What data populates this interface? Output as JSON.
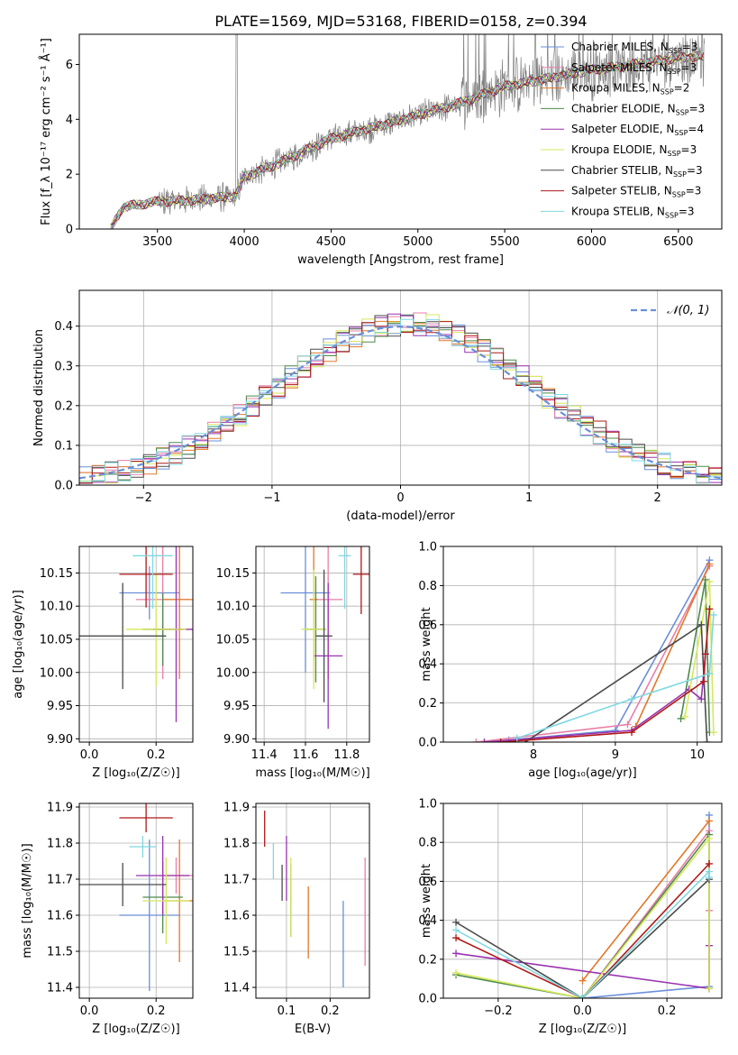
{
  "figure": {
    "title": "PLATE=1569, MJD=53168, FIBERID=0158, z=0.394"
  },
  "models": [
    {
      "name": "Chabrier MILES",
      "nssp": "3",
      "color": "#6a8fd8"
    },
    {
      "name": "Salpeter MILES",
      "nssp": "3",
      "color": "#e87fa8"
    },
    {
      "name": "Kroupa MILES",
      "nssp": "2",
      "color": "#e0782a"
    },
    {
      "name": "Chabrier ELODIE",
      "nssp": "3",
      "color": "#4c8a4c"
    },
    {
      "name": "Salpeter ELODIE",
      "nssp": "4",
      "color": "#9932b0"
    },
    {
      "name": "Kroupa ELODIE",
      "nssp": "3",
      "color": "#d6e85a"
    },
    {
      "name": "Chabrier STELIB",
      "nssp": "3",
      "color": "#4a4a4a"
    },
    {
      "name": "Salpeter STELIB",
      "nssp": "3",
      "color": "#b01818"
    },
    {
      "name": "Kroupa STELIB",
      "nssp": "3",
      "color": "#7fd8e0"
    }
  ],
  "chart_data": [
    {
      "id": "spectrum",
      "type": "line",
      "xlabel": "wavelength [Angstrom, rest frame]",
      "ylabel": "Flux [f_λ 10⁻¹⁷ erg cm⁻² s⁻¹ Å⁻¹]",
      "xlim": [
        3050,
        6750
      ],
      "ylim": [
        0,
        7.1
      ],
      "xticks": [
        3500,
        4000,
        4500,
        5000,
        5500,
        6000,
        6500
      ],
      "yticks": [
        0,
        2,
        4,
        6
      ],
      "legend_position": "top-right",
      "data_color": "#808080",
      "model_trend": {
        "x": [
          3230,
          3300,
          3500,
          3700,
          3950,
          4000,
          4200,
          4500,
          4800,
          5000,
          5250,
          5500,
          5800,
          6000,
          6200,
          6500,
          6650
        ],
        "y": [
          0.0,
          0.8,
          1.0,
          1.05,
          1.2,
          1.9,
          2.4,
          3.3,
          3.8,
          4.15,
          4.6,
          5.2,
          5.55,
          5.8,
          5.95,
          6.25,
          6.3
        ]
      }
    },
    {
      "id": "residuals",
      "type": "histogram",
      "xlabel": "(data-model)/error",
      "ylabel": "Normed distribution",
      "xlim": [
        -2.5,
        2.5
      ],
      "ylim": [
        0,
        0.49
      ],
      "xticks": [
        -2,
        -1,
        0,
        1,
        2
      ],
      "yticks": [
        0.0,
        0.1,
        0.2,
        0.3,
        0.4
      ],
      "legend_position": "top-right",
      "reference_curve": "𝒩(0, 1)",
      "bin_width": 0.1
    },
    {
      "id": "age_vs_Z",
      "type": "errorbar",
      "xlabel": "Z [log₁₀(Z/Z☉)]",
      "ylabel": "age  [log₁₀(age/yr)]",
      "xlim": [
        -0.03,
        0.31
      ],
      "ylim": [
        9.895,
        10.19
      ],
      "xticks": [
        0.0,
        0.2
      ],
      "yticks": [
        9.9,
        9.95,
        10.0,
        10.05,
        10.1,
        10.15
      ],
      "points": [
        {
          "x": 0.18,
          "xerr": 0.09,
          "y": 10.12,
          "yerr": 0.04
        },
        {
          "x": 0.22,
          "xerr": 0.08,
          "y": 10.11,
          "yerr": 0.12
        },
        {
          "x": 0.27,
          "xerr": 0.05,
          "y": 10.11,
          "yerr": 0.12
        },
        {
          "x": 0.22,
          "xerr": 0.06,
          "y": 10.065,
          "yerr": 0.055
        },
        {
          "x": 0.26,
          "xerr": 0.07,
          "y": 10.065,
          "yerr": 0.14
        },
        {
          "x": 0.2,
          "xerr": 0.09,
          "y": 10.065,
          "yerr": 0.085
        },
        {
          "x": 0.1,
          "xerr": 0.13,
          "y": 10.055,
          "yerr": 0.08
        },
        {
          "x": 0.17,
          "xerr": 0.08,
          "y": 10.148,
          "yerr": 0.05
        },
        {
          "x": 0.19,
          "xerr": 0.06,
          "y": 10.176,
          "yerr": 0.08
        }
      ]
    },
    {
      "id": "age_vs_mass",
      "type": "errorbar",
      "xlabel": "mass [log₁₀(M/M☉)]",
      "ylabel": "",
      "xlim": [
        11.36,
        11.91
      ],
      "ylim": [
        9.895,
        10.19
      ],
      "xticks": [
        11.4,
        11.6,
        11.8
      ],
      "yticks": [
        9.9,
        9.95,
        10.0,
        10.05,
        10.1,
        10.15
      ],
      "points": [
        {
          "x": 11.6,
          "xerr": 0.12,
          "y": 10.12,
          "yerr": 0.12
        },
        {
          "x": 11.71,
          "xerr": 0.07,
          "y": 10.11,
          "yerr": 0.12
        },
        {
          "x": 11.64,
          "xerr": 0.02,
          "y": 10.11,
          "yerr": 0.09
        },
        {
          "x": 11.65,
          "xerr": 0.05,
          "y": 10.065,
          "yerr": 0.08
        },
        {
          "x": 11.71,
          "xerr": 0.07,
          "y": 10.025,
          "yerr": 0.11
        },
        {
          "x": 11.64,
          "xerr": 0.06,
          "y": 10.065,
          "yerr": 0.09
        },
        {
          "x": 11.69,
          "xerr": 0.04,
          "y": 10.055,
          "yerr": 0.1
        },
        {
          "x": 11.87,
          "xerr": 0.04,
          "y": 10.148,
          "yerr": 0.06
        },
        {
          "x": 11.79,
          "xerr": 0.03,
          "y": 10.176,
          "yerr": 0.08
        }
      ]
    },
    {
      "id": "weight_vs_age",
      "type": "line",
      "xlabel": "age  [log₁₀(age/yr)]",
      "ylabel": "mass weight",
      "xlim": [
        6.9,
        10.3
      ],
      "ylim": [
        0,
        1.0
      ],
      "xticks": [
        8,
        9,
        10
      ],
      "yticks": [
        0.0,
        0.2,
        0.4,
        0.6,
        0.8,
        1.0
      ],
      "series": [
        {
          "x": [
            7.7,
            9.0,
            10.15
          ],
          "y": [
            0.01,
            0.06,
            0.93
          ]
        },
        {
          "x": [
            7.3,
            9.15,
            10.15
          ],
          "y": [
            0.0,
            0.09,
            0.9
          ]
        },
        {
          "x": [
            9.25,
            10.15
          ],
          "y": [
            0.08,
            0.91
          ]
        },
        {
          "x": [
            9.8,
            10.1,
            10.15
          ],
          "y": [
            0.12,
            0.83,
            0.05
          ]
        },
        {
          "x": [
            7.4,
            9.2,
            9.9,
            10.05,
            10.1
          ],
          "y": [
            0.0,
            0.06,
            0.27,
            0.22,
            0.45
          ]
        },
        {
          "x": [
            9.85,
            10.15,
            10.2
          ],
          "y": [
            0.13,
            0.82,
            0.05
          ]
        },
        {
          "x": [
            7.9,
            10.05,
            10.12
          ],
          "y": [
            0.0,
            0.6,
            0.0
          ]
        },
        {
          "x": [
            7.6,
            9.2,
            10.08,
            10.1,
            10.15
          ],
          "y": [
            0.0,
            0.05,
            0.31,
            0.45,
            0.68
          ]
        },
        {
          "x": [
            7.8,
            9.2,
            10.15,
            10.2
          ],
          "y": [
            0.02,
            0.22,
            0.35,
            0.65
          ]
        }
      ]
    },
    {
      "id": "mass_vs_Z",
      "type": "errorbar",
      "xlabel": "Z [log₁₀(Z/Z☉)]",
      "ylabel": "mass [log₁₀(M/M☉)]",
      "xlim": [
        -0.03,
        0.31
      ],
      "ylim": [
        11.37,
        11.91
      ],
      "xticks": [
        0.0,
        0.2
      ],
      "yticks": [
        11.4,
        11.5,
        11.6,
        11.7,
        11.8,
        11.9
      ],
      "points": [
        {
          "x": 0.18,
          "xerr": 0.09,
          "y": 11.6,
          "yerr": 0.21
        },
        {
          "x": 0.26,
          "xerr": 0.05,
          "y": 11.71,
          "yerr": 0.05
        },
        {
          "x": 0.27,
          "xerr": 0.05,
          "y": 11.64,
          "yerr": 0.17
        },
        {
          "x": 0.22,
          "xerr": 0.06,
          "y": 11.65,
          "yerr": 0.1
        },
        {
          "x": 0.22,
          "xerr": 0.08,
          "y": 11.71,
          "yerr": 0.11
        },
        {
          "x": 0.23,
          "xerr": 0.07,
          "y": 11.64,
          "yerr": 0.12
        },
        {
          "x": 0.1,
          "xerr": 0.13,
          "y": 11.685,
          "yerr": 0.06
        },
        {
          "x": 0.17,
          "xerr": 0.08,
          "y": 11.87,
          "yerr": 0.04
        },
        {
          "x": 0.16,
          "xerr": 0.04,
          "y": 11.79,
          "yerr": 0.03
        }
      ]
    },
    {
      "id": "mass_vs_ebv",
      "type": "errorbar",
      "xlabel": "E(B-V)",
      "ylabel": "",
      "xlim": [
        0.03,
        0.29
      ],
      "ylim": [
        11.37,
        11.91
      ],
      "xticks": [
        0.1,
        0.2
      ],
      "yticks": [
        11.4,
        11.5,
        11.6,
        11.7,
        11.8,
        11.9
      ],
      "points": [
        {
          "x": 0.23,
          "y": 11.52,
          "yerr": 0.12
        },
        {
          "x": 0.28,
          "y": 11.61,
          "yerr": 0.15
        },
        {
          "x": 0.15,
          "y": 11.58,
          "yerr": 0.1
        },
        {
          "x": 0.11,
          "y": 11.64,
          "yerr": 0.1
        },
        {
          "x": 0.1,
          "y": 11.73,
          "yerr": 0.09
        },
        {
          "x": 0.11,
          "y": 11.65,
          "yerr": 0.11
        },
        {
          "x": 0.09,
          "y": 11.69,
          "yerr": 0.05
        },
        {
          "x": 0.05,
          "y": 11.84,
          "yerr": 0.05
        },
        {
          "x": 0.07,
          "y": 11.75,
          "yerr": 0.05
        }
      ]
    },
    {
      "id": "weight_vs_Z",
      "type": "line",
      "xlabel": "Z [log₁₀(Z/Z☉)]",
      "ylabel": "mass weight",
      "xlim": [
        -0.33,
        0.33
      ],
      "ylim": [
        0,
        1.0
      ],
      "xticks": [
        -0.2,
        0.0,
        0.2
      ],
      "yticks": [
        0.0,
        0.2,
        0.4,
        0.6,
        0.8,
        1.0
      ],
      "series": [
        {
          "x": [
            0.0,
            0.3,
            0.3
          ],
          "y": [
            0.0,
            0.06,
            0.94
          ]
        },
        {
          "x": [
            0.0,
            0.3,
            0.3
          ],
          "y": [
            0.0,
            0.86,
            0.45
          ]
        },
        {
          "x": [
            0.0,
            0.3
          ],
          "y": [
            0.09,
            0.91
          ]
        },
        {
          "x": [
            -0.3,
            0.0,
            0.3,
            0.3
          ],
          "y": [
            0.12,
            0.0,
            0.84,
            0.05
          ]
        },
        {
          "x": [
            -0.3,
            0.3,
            0.3
          ],
          "y": [
            0.23,
            0.05,
            0.27
          ]
        },
        {
          "x": [
            -0.3,
            0.0,
            0.3,
            0.3
          ],
          "y": [
            0.13,
            0.0,
            0.82,
            0.05
          ]
        },
        {
          "x": [
            -0.3,
            0.0,
            0.3
          ],
          "y": [
            0.39,
            0.0,
            0.61
          ]
        },
        {
          "x": [
            -0.3,
            0.0,
            0.3
          ],
          "y": [
            0.31,
            0.0,
            0.69
          ]
        },
        {
          "x": [
            -0.3,
            0.0,
            0.3,
            0.3
          ],
          "y": [
            0.35,
            0.0,
            0.65,
            0.62
          ]
        }
      ]
    }
  ]
}
